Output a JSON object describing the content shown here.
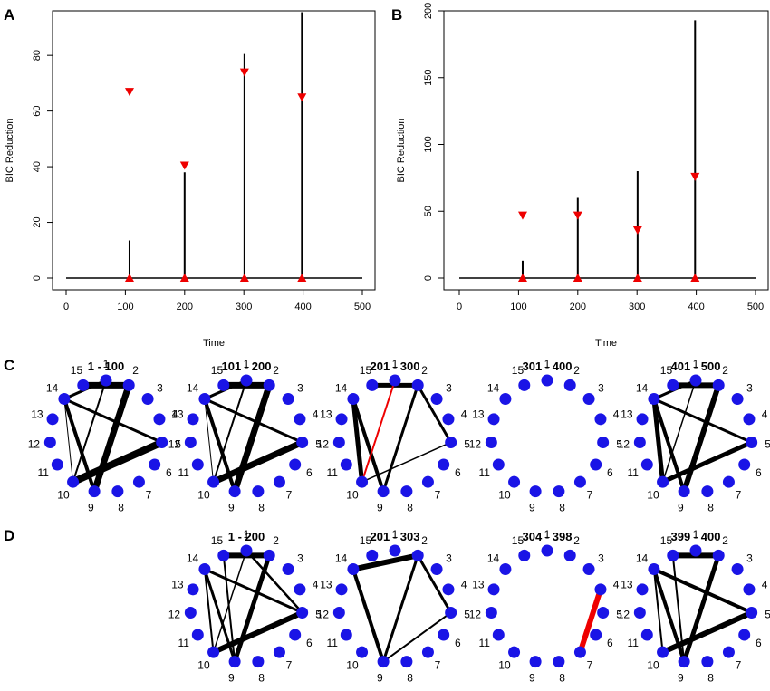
{
  "colors": {
    "marker": "#ee0000",
    "node": "#1a14e6",
    "edge": "#000000",
    "neg_edge": "#ee0000",
    "axis": "#000000"
  },
  "chart_data": [
    {
      "id": "A",
      "panel": "A",
      "type": "line",
      "xlabel": "Time",
      "ylabel": "BIC Reduction",
      "xlim": [
        0,
        500
      ],
      "ylim": [
        -3,
        96
      ],
      "xticks": [
        "0",
        "100",
        "200",
        "300",
        "400",
        "500"
      ],
      "yticks": [
        "0",
        "20",
        "40",
        "60",
        "80"
      ],
      "baseline": [
        0,
        500
      ],
      "spikes": [
        {
          "x": 107,
          "y": 13.5
        },
        {
          "x": 200,
          "y": 38
        },
        {
          "x": 301,
          "y": 80.5
        },
        {
          "x": 398,
          "y": 95.5
        }
      ],
      "down_markers": [
        {
          "x": 107,
          "y": 67
        },
        {
          "x": 200,
          "y": 40.5
        },
        {
          "x": 301,
          "y": 74
        },
        {
          "x": 398,
          "y": 65
        }
      ],
      "up_markers": [
        {
          "x": 107,
          "y": 0
        },
        {
          "x": 200,
          "y": 0
        },
        {
          "x": 301,
          "y": 0
        },
        {
          "x": 398,
          "y": 0
        }
      ]
    },
    {
      "id": "B",
      "panel": "B",
      "type": "line",
      "xlabel": "Time",
      "ylabel": "BIC Reduction",
      "xlim": [
        0,
        500
      ],
      "ylim": [
        -5,
        200
      ],
      "xticks": [
        "0",
        "100",
        "200",
        "300",
        "400",
        "500"
      ],
      "yticks": [
        "0",
        "50",
        "100",
        "150",
        "200"
      ],
      "baseline": [
        0,
        500
      ],
      "spikes": [
        {
          "x": 107,
          "y": 13
        },
        {
          "x": 200,
          "y": 60
        },
        {
          "x": 301,
          "y": 80
        },
        {
          "x": 398,
          "y": 193
        }
      ],
      "down_markers": [
        {
          "x": 107,
          "y": 47
        },
        {
          "x": 200,
          "y": 47
        },
        {
          "x": 301,
          "y": 36
        },
        {
          "x": 398,
          "y": 76
        }
      ],
      "up_markers": [
        {
          "x": 107,
          "y": 0
        },
        {
          "x": 200,
          "y": 0
        },
        {
          "x": 301,
          "y": 0
        },
        {
          "x": 398,
          "y": 0
        }
      ]
    }
  ],
  "network_rows": [
    {
      "letter": "C",
      "networks": [
        {
          "title": "1 - 100",
          "edges": [
            [
              15,
              2,
              7
            ],
            [
              14,
              5,
              3
            ],
            [
              14,
              9,
              4
            ],
            [
              14,
              10,
              1
            ],
            [
              2,
              9,
              7
            ],
            [
              10,
              5,
              8
            ],
            [
              1,
              10,
              2
            ],
            [
              14,
              1,
              3
            ]
          ]
        },
        {
          "title": "101 - 200",
          "edges": [
            [
              15,
              2,
              7
            ],
            [
              14,
              5,
              3
            ],
            [
              14,
              9,
              4
            ],
            [
              14,
              10,
              1
            ],
            [
              2,
              9,
              7
            ],
            [
              10,
              5,
              7
            ],
            [
              1,
              10,
              2
            ],
            [
              14,
              1,
              3
            ]
          ]
        },
        {
          "title": "201 - 300",
          "edges": [
            [
              15,
              2,
              5
            ],
            [
              14,
              9,
              4
            ],
            [
              14,
              10,
              5
            ],
            [
              2,
              9,
              3
            ],
            [
              2,
              5,
              3
            ],
            [
              10,
              5,
              1.5
            ],
            [
              10,
              1,
              2,
              "neg"
            ]
          ]
        },
        {
          "title": "301 - 400",
          "edges": []
        },
        {
          "title": "401 - 500",
          "edges": [
            [
              15,
              2,
              6
            ],
            [
              14,
              5,
              3
            ],
            [
              14,
              9,
              4
            ],
            [
              14,
              10,
              5
            ],
            [
              2,
              9,
              6
            ],
            [
              10,
              5,
              5
            ],
            [
              1,
              10,
              1.5
            ],
            [
              14,
              1,
              3
            ]
          ]
        }
      ]
    },
    {
      "letter": "D",
      "networks": [
        {
          "title": "1 - 200",
          "edges": [
            [
              15,
              2,
              6
            ],
            [
              14,
              5,
              3
            ],
            [
              14,
              9,
              3
            ],
            [
              14,
              10,
              2
            ],
            [
              2,
              9,
              5
            ],
            [
              10,
              5,
              6
            ],
            [
              15,
              9,
              2
            ],
            [
              1,
              10,
              1.5
            ],
            [
              1,
              5,
              2.5
            ]
          ]
        },
        {
          "title": "201 - 303",
          "edges": [
            [
              14,
              2,
              6
            ],
            [
              14,
              9,
              4
            ],
            [
              2,
              9,
              3
            ],
            [
              2,
              5,
              3
            ],
            [
              9,
              5,
              2
            ]
          ]
        },
        {
          "title": "304 - 398",
          "edges": [
            [
              4,
              7,
              6,
              "neg"
            ]
          ]
        },
        {
          "title": "399 - 400",
          "edges": [
            [
              15,
              2,
              6
            ],
            [
              14,
              5,
              4
            ],
            [
              14,
              9,
              4
            ],
            [
              14,
              10,
              2
            ],
            [
              2,
              9,
              5
            ],
            [
              10,
              5,
              6
            ],
            [
              15,
              9,
              2
            ]
          ]
        }
      ]
    }
  ],
  "node_labels": [
    "1",
    "2",
    "3",
    "4",
    "5",
    "6",
    "7",
    "8",
    "9",
    "10",
    "11",
    "12",
    "13",
    "14",
    "15"
  ]
}
